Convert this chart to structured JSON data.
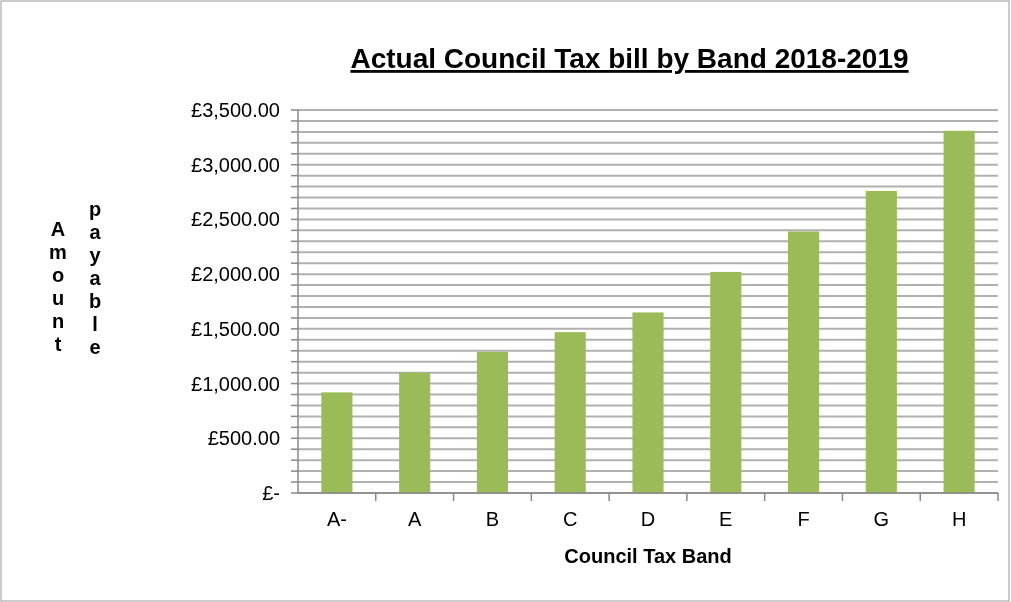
{
  "chart_data": {
    "type": "bar",
    "title": "Actual Council Tax bill by Band 2018-2019",
    "xlabel": "Council Tax Band",
    "ylabel": "Amount payable",
    "categories": [
      "A-",
      "A",
      "B",
      "C",
      "D",
      "E",
      "F",
      "G",
      "H"
    ],
    "values": [
      920,
      1100,
      1290,
      1470,
      1650,
      2020,
      2390,
      2760,
      3310
    ],
    "color": "#9bbb59",
    "ylim": [
      0,
      3500
    ],
    "yticks": [
      {
        "value": 0,
        "label": "£-"
      },
      {
        "value": 100,
        "label": null
      },
      {
        "value": 200,
        "label": null
      },
      {
        "value": 300,
        "label": null
      },
      {
        "value": 400,
        "label": null
      },
      {
        "value": 500,
        "label": "£500.00"
      },
      {
        "value": 600,
        "label": null
      },
      {
        "value": 700,
        "label": null
      },
      {
        "value": 800,
        "label": null
      },
      {
        "value": 900,
        "label": null
      },
      {
        "value": 1000,
        "label": "£1,000.00"
      },
      {
        "value": 1100,
        "label": null
      },
      {
        "value": 1200,
        "label": null
      },
      {
        "value": 1300,
        "label": null
      },
      {
        "value": 1400,
        "label": null
      },
      {
        "value": 1500,
        "label": "£1,500.00"
      },
      {
        "value": 1600,
        "label": null
      },
      {
        "value": 1700,
        "label": null
      },
      {
        "value": 1800,
        "label": null
      },
      {
        "value": 1900,
        "label": null
      },
      {
        "value": 2000,
        "label": "£2,000.00"
      },
      {
        "value": 2100,
        "label": null
      },
      {
        "value": 2200,
        "label": null
      },
      {
        "value": 2300,
        "label": null
      },
      {
        "value": 2400,
        "label": null
      },
      {
        "value": 2500,
        "label": "£2,500.00"
      },
      {
        "value": 2600,
        "label": null
      },
      {
        "value": 2700,
        "label": null
      },
      {
        "value": 2800,
        "label": null
      },
      {
        "value": 2900,
        "label": null
      },
      {
        "value": 3000,
        "label": "£3,000.00"
      },
      {
        "value": 3100,
        "label": null
      },
      {
        "value": 3200,
        "label": null
      },
      {
        "value": 3300,
        "label": null
      },
      {
        "value": 3400,
        "label": null
      },
      {
        "value": 3500,
        "label": "£3,500.00"
      }
    ],
    "grid": true
  }
}
